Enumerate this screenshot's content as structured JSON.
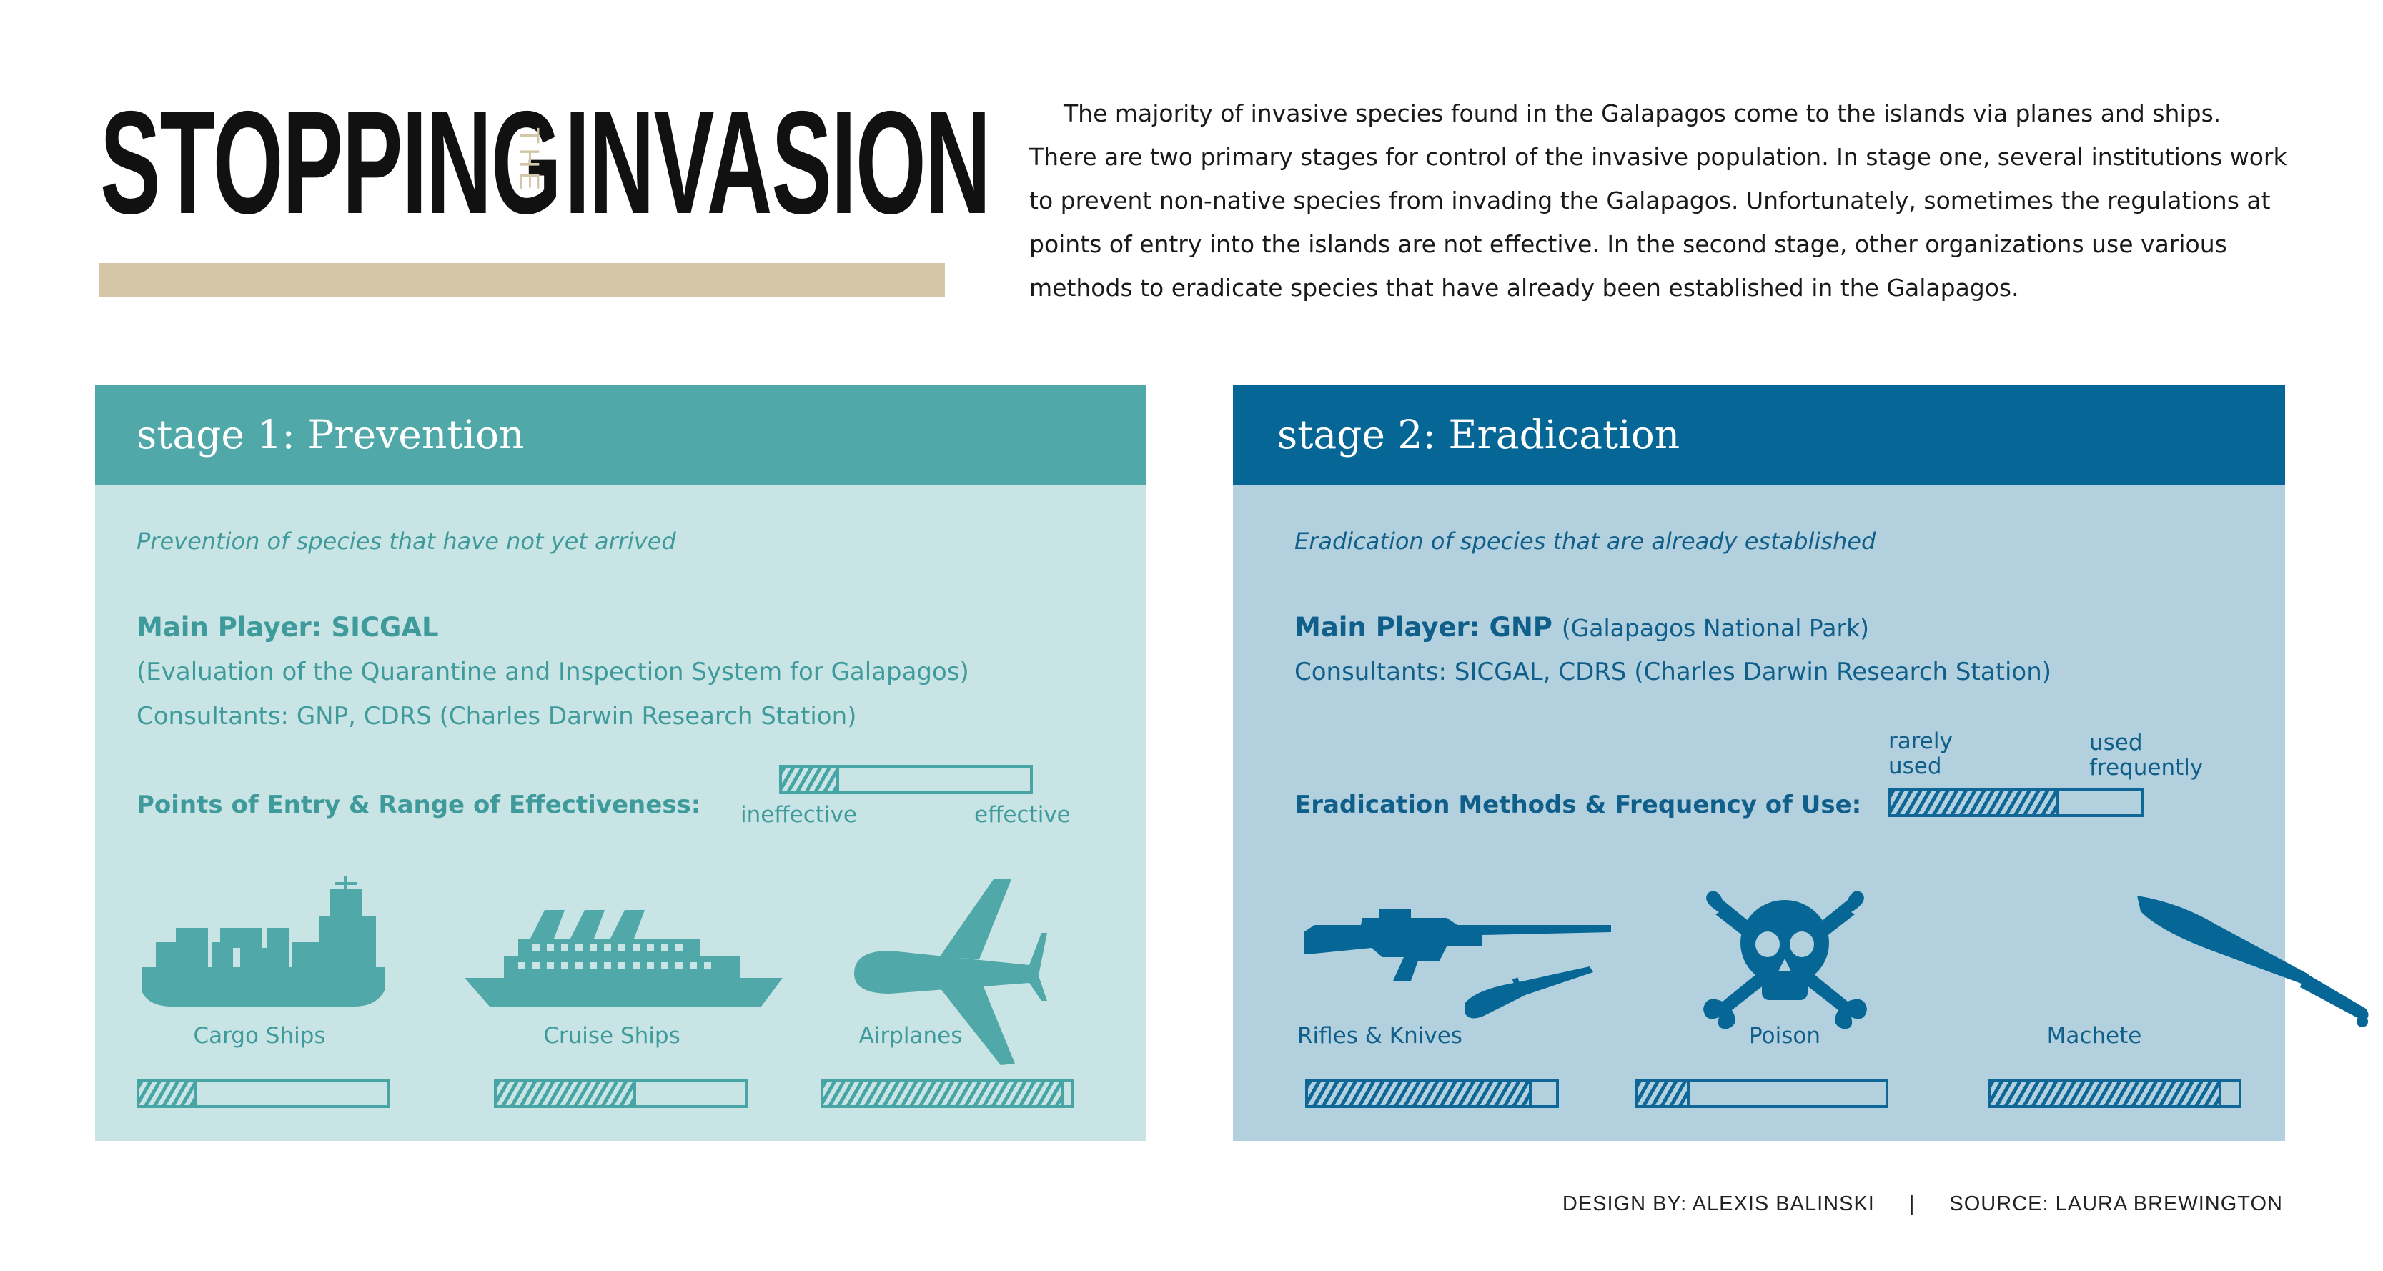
{
  "title": {
    "word1": "STOPPING",
    "the": "THE",
    "word2": "INVASION"
  },
  "intro": "The majority of invasive species found in the Galapagos come to the islands via planes and ships. There are two primary stages for control of the invasive population. In stage one, several institutions work to prevent non-native species from invading the Galapagos. Unfortunately, sometimes the regulations at points of entry into the islands are not effective. In the second stage, other organizations use various methods to eradicate species that have already been established in the Galapagos.",
  "stage1": {
    "title": "stage 1: Prevention",
    "subtitle": "Prevention of species that have not yet arrived",
    "main_player": "Main Player: SICGAL",
    "main_player_detail": "(Evaluation of the Quarantine and Inspection System for Galapagos)",
    "consultants": "Consultants: GNP, CDRS (Charles Darwin Research Station)",
    "heading": "Points of Entry & Range of Effectiveness:",
    "legend": {
      "low": "ineffective",
      "high": "effective",
      "example_value": 0.22
    },
    "items": [
      {
        "label": "Cargo Ships",
        "icon": "cargo-ship-icon",
        "value": 0.22
      },
      {
        "label": "Cruise Ships",
        "icon": "cruise-ship-icon",
        "value": 0.55
      },
      {
        "label": "Airplanes",
        "icon": "airplane-icon",
        "value": 0.96
      }
    ],
    "color": "#50a8a9"
  },
  "stage2": {
    "title": "stage 2: Eradication",
    "subtitle": "Eradication of species that are already established",
    "main_player": "Main Player: GNP",
    "main_player_detail": "(Galapagos National Park)",
    "consultants": "Consultants: SICGAL, CDRS (Charles Darwin Research Station)",
    "heading": "Eradication Methods & Frequency of Use:",
    "legend": {
      "low": "rarely used",
      "high": "used frequently",
      "example_value": 0.66
    },
    "items": [
      {
        "label": "Rifles & Knives",
        "icon": "rifle-knife-icon",
        "value": 0.89
      },
      {
        "label": "Poison",
        "icon": "skull-crossbones-icon",
        "value": 0.2
      },
      {
        "label": "Machete",
        "icon": "machete-icon",
        "value": 0.92
      }
    ],
    "color": "#066796"
  },
  "footer": {
    "design": "DESIGN BY: ALEXIS BALINSKI",
    "separator": "|",
    "source": "SOURCE: LAURA BREWINGTON"
  }
}
